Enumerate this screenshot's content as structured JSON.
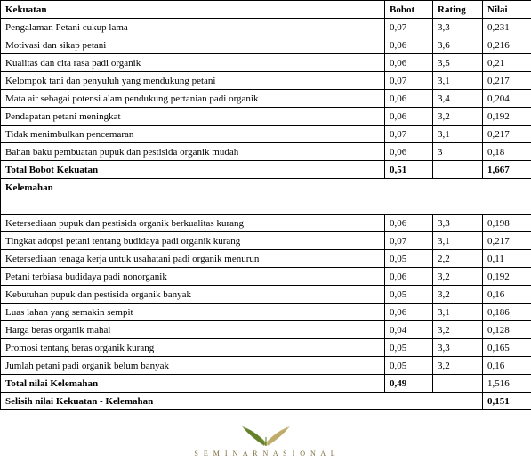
{
  "headers": {
    "kekuatan": "Kekuatan",
    "bobot": "Bobot",
    "rating": "Rating",
    "nilai": "Nilai"
  },
  "strengths": [
    {
      "label": "Pengalaman Petani cukup lama",
      "bobot": "0,07",
      "rating": "3,3",
      "nilai": "0,231"
    },
    {
      "label": "Motivasi dan sikap petani",
      "bobot": "0,06",
      "rating": "3,6",
      "nilai": "0,216"
    },
    {
      "label": "Kualitas dan cita rasa padi organik",
      "bobot": "0,06",
      "rating": "3,5",
      "nilai": "0,21"
    },
    {
      "label": "Kelompok tani dan penyuluh yang mendukung petani",
      "bobot": "0,07",
      "rating": "3,1",
      "nilai": "0,217"
    },
    {
      "label": "Mata air sebagai potensi alam pendukung pertanian padi organik",
      "bobot": "0,06",
      "rating": "3,4",
      "nilai": "0,204"
    },
    {
      "label": "Pendapatan petani meningkat",
      "bobot": "0,06",
      "rating": "3,2",
      "nilai": "0,192"
    },
    {
      "label": "Tidak menimbulkan pencemaran",
      "bobot": "0,07",
      "rating": "3,1",
      "nilai": "0,217"
    },
    {
      "label": "Bahan baku pembuatan pupuk dan pestisida organik mudah",
      "bobot": "0,06",
      "rating": "3",
      "nilai": "0,18"
    }
  ],
  "strengths_total": {
    "label": "Total Bobot Kekuatan",
    "bobot": "0,51",
    "rating": "",
    "nilai": " 1,667"
  },
  "weakness_header": "Kelemahan",
  "weaknesses": [
    {
      "label": "Ketersediaan pupuk dan pestisida organik berkualitas kurang",
      "bobot": "0,06",
      "rating": "3,3",
      "nilai": "0,198"
    },
    {
      "label": "Tingkat adopsi petani tentang budidaya padi organik kurang",
      "bobot": "0,07",
      "rating": "3,1",
      "nilai": "0,217"
    },
    {
      "label": "Ketersediaan tenaga kerja untuk usahatani padi organik menurun",
      "bobot": "0,05",
      "rating": "2,2",
      "nilai": "0,11"
    },
    {
      "label": "Petani terbiasa budidaya padi nonorganik",
      "bobot": "0,06",
      "rating": "3,2",
      "nilai": "0,192"
    },
    {
      "label": "Kebutuhan pupuk dan pestisida organik banyak",
      "bobot": "0,05",
      "rating": "3,2",
      "nilai": "0,16"
    },
    {
      "label": "Luas lahan yang semakin sempit",
      "bobot": "0,06",
      "rating": "3,1",
      "nilai": "0,186"
    },
    {
      "label": "Harga beras organik mahal",
      "bobot": "0,04",
      "rating": "3,2",
      "nilai": "0,128"
    },
    {
      "label": "Promosi tentang beras organik kurang",
      "bobot": "0,05",
      "rating": "3,3",
      "nilai": "0,165"
    },
    {
      "label": "Jumlah petani padi organik belum banyak",
      "bobot": "0,05",
      "rating": "3,2",
      "nilai": "0,16"
    }
  ],
  "weaknesses_total": {
    "label": "Total nilai Kelemahan",
    "bobot": "0,49",
    "rating": "",
    "nilai": "1,516"
  },
  "difference": {
    "label": "Selisih nilai Kekuatan - Kelemahan",
    "nilai": "0,151"
  },
  "footer": {
    "logo_text": "S E M I N A R   N A S I O N A L",
    "leaf_left_color": "#6b8e23",
    "leaf_right_color": "#c9b572",
    "leaf_stem_color": "#5a7020"
  }
}
